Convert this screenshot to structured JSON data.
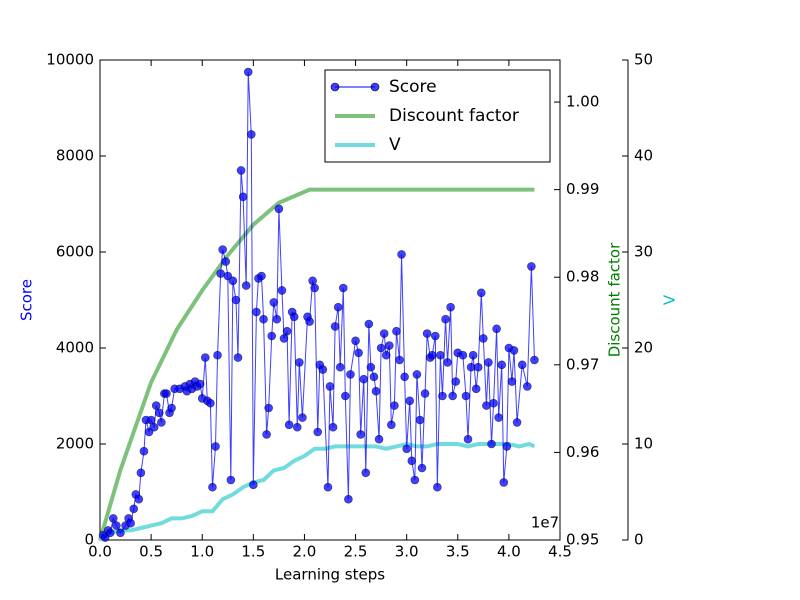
{
  "chart_data": {
    "type": "line",
    "xlabel": "Learning steps",
    "ylabel": "Score",
    "y2label": "Discount factor",
    "y3label": "V",
    "x_offset_label": "1e7",
    "xlim": [
      0,
      45000000.0
    ],
    "xticks": [
      {
        "value": 0,
        "label": "0.0"
      },
      {
        "value": 5000000.0,
        "label": "0.5"
      },
      {
        "value": 10000000.0,
        "label": "1.0"
      },
      {
        "value": 15000000.0,
        "label": "1.5"
      },
      {
        "value": 20000000.0,
        "label": "2.0"
      },
      {
        "value": 25000000.0,
        "label": "2.5"
      },
      {
        "value": 30000000.0,
        "label": "3.0"
      },
      {
        "value": 35000000.0,
        "label": "3.5"
      },
      {
        "value": 40000000.0,
        "label": "4.0"
      },
      {
        "value": 45000000.0,
        "label": "4.5"
      }
    ],
    "ylim": [
      0,
      10000
    ],
    "yticks": [
      0,
      2000,
      4000,
      6000,
      8000,
      10000
    ],
    "y2lim": [
      0.95,
      1.0048
    ],
    "y2ticks": [
      0.95,
      0.96,
      0.97,
      0.98,
      0.99,
      {
        "value": 1.0,
        "label": "1.00"
      }
    ],
    "y3lim": [
      0,
      50
    ],
    "y3ticks": [
      0,
      10,
      20,
      30,
      40,
      50
    ],
    "legend": "upper right",
    "series": [
      {
        "name": "Score",
        "color": "#0000ff",
        "marker": true,
        "x": [
          300000.0,
          500000.0,
          800000.0,
          1000000.0,
          1300000.0,
          1600000.0,
          2000000.0,
          2500000.0,
          2800000.0,
          3000000.0,
          3300000.0,
          3500000.0,
          3800000.0,
          4000000.0,
          4300000.0,
          4500000.0,
          4800000.0,
          5000000.0,
          5300000.0,
          5500000.0,
          5800000.0,
          6000000.0,
          6300000.0,
          6500000.0,
          6800000.0,
          7000000.0,
          7300000.0,
          7800000.0,
          8300000.0,
          8500000.0,
          8800000.0,
          9000000.0,
          9300000.0,
          9500000.0,
          9800000.0,
          10000000.0,
          10300000.0,
          10500000.0,
          10800000.0,
          11000000.0,
          11300000.0,
          11500000.0,
          11800000.0,
          12000000.0,
          12300000.0,
          12500000.0,
          12800000.0,
          13000000.0,
          13300000.0,
          13500000.0,
          13800000.0,
          14000000.0,
          14300000.0,
          14500000.0,
          14800000.0,
          15000000.0,
          15300000.0,
          15500000.0,
          15800000.0,
          16000000.0,
          16300000.0,
          16500000.0,
          16800000.0,
          17000000.0,
          17300000.0,
          17500000.0,
          17800000.0,
          18000000.0,
          18300000.0,
          18500000.0,
          18800000.0,
          19000000.0,
          19300000.0,
          19500000.0,
          19800000.0,
          20300000.0,
          20500000.0,
          20800000.0,
          21000000.0,
          21300000.0,
          21500000.0,
          21800000.0,
          22300000.0,
          22500000.0,
          22800000.0,
          23000000.0,
          23300000.0,
          23500000.0,
          23800000.0,
          24000000.0,
          24300000.0,
          24500000.0,
          25000000.0,
          25300000.0,
          25500000.0,
          25800000.0,
          26000000.0,
          26300000.0,
          26500000.0,
          26800000.0,
          27000000.0,
          27300000.0,
          27500000.0,
          27800000.0,
          28000000.0,
          28300000.0,
          28500000.0,
          28800000.0,
          29000000.0,
          29300000.0,
          29500000.0,
          29800000.0,
          30000000.0,
          30300000.0,
          30500000.0,
          30800000.0,
          31000000.0,
          31300000.0,
          31500000.0,
          31800000.0,
          32000000.0,
          32300000.0,
          32500000.0,
          32800000.0,
          33000000.0,
          33300000.0,
          33500000.0,
          33800000.0,
          34000000.0,
          34300000.0,
          34500000.0,
          34800000.0,
          35000000.0,
          35500000.0,
          35800000.0,
          36000000.0,
          36300000.0,
          36500000.0,
          36800000.0,
          37000000.0,
          37300000.0,
          37500000.0,
          37800000.0,
          38000000.0,
          38300000.0,
          38500000.0,
          38800000.0,
          39000000.0,
          39300000.0,
          39500000.0,
          39800000.0,
          40000000.0,
          40300000.0,
          40500000.0,
          40800000.0,
          41300000.0,
          41800000.0,
          42200000.0,
          42500000.0
        ],
        "values": [
          100,
          50,
          200,
          150,
          450,
          300,
          150,
          300,
          450,
          350,
          650,
          950,
          850,
          1400,
          1850,
          2500,
          2250,
          2500,
          2350,
          2800,
          2650,
          2450,
          3050,
          3050,
          2650,
          2750,
          3150,
          3150,
          3200,
          3100,
          3250,
          3150,
          3300,
          3200,
          3250,
          2950,
          3800,
          2900,
          2850,
          1100,
          1950,
          3850,
          5550,
          6050,
          5800,
          5500,
          1250,
          5400,
          5000,
          3800,
          7700,
          7150,
          5300,
          9750,
          8450,
          1150,
          4750,
          5450,
          5500,
          4600,
          2200,
          2750,
          4250,
          4950,
          4600,
          6900,
          5200,
          4200,
          4350,
          2400,
          4750,
          4650,
          2350,
          3700,
          2550,
          4650,
          4550,
          5400,
          5250,
          2250,
          3650,
          3550,
          1100,
          3200,
          2350,
          4450,
          4850,
          3600,
          5250,
          3000,
          850,
          3450,
          4150,
          3900,
          2200,
          3350,
          1400,
          4500,
          3600,
          3400,
          3100,
          2100,
          4000,
          4300,
          3850,
          4050,
          2400,
          2800,
          4350,
          3750,
          5950,
          3400,
          1900,
          2900,
          1650,
          1250,
          3450,
          2500,
          1500,
          3050,
          4300,
          3800,
          3850,
          4250,
          1100,
          3850,
          3000,
          4600,
          3700,
          4850,
          3000,
          3300,
          3900,
          3850,
          3000,
          2100,
          3600,
          3850,
          3150,
          3600,
          5150,
          4200,
          2800,
          3700,
          2000,
          2850,
          4400,
          2550,
          3650,
          1200,
          1950,
          4000,
          3300,
          3950,
          2450,
          3650,
          3200,
          5700,
          3750
        ]
      },
      {
        "name": "Discount factor",
        "color": "#7dc17d",
        "axis": "y2",
        "x": [
          0,
          1000000.0,
          2000000.0,
          3500000.0,
          5000000.0,
          7500000.0,
          10000000.0,
          12500000.0,
          15000000.0,
          17500000.0,
          20500000.0,
          42500000.0
        ],
        "values": [
          0.95,
          0.954,
          0.958,
          0.963,
          0.968,
          0.974,
          0.9785,
          0.9825,
          0.986,
          0.9885,
          0.99,
          0.99
        ]
      },
      {
        "name": "V",
        "color": "#72dcdc",
        "axis": "y3",
        "x": [
          0,
          1000000.0,
          2000000.0,
          3000000.0,
          4000000.0,
          5000000.0,
          6000000.0,
          7000000.0,
          8000000.0,
          9000000.0,
          10000000.0,
          11000000.0,
          12000000.0,
          13000000.0,
          14000000.0,
          15000000.0,
          16000000.0,
          17000000.0,
          18000000.0,
          19000000.0,
          20000000.0,
          21000000.0,
          22000000.0,
          23000000.0,
          24000000.0,
          25000000.0,
          26000000.0,
          27000000.0,
          28000000.0,
          29000000.0,
          30000000.0,
          31000000.0,
          32000000.0,
          33000000.0,
          34000000.0,
          35000000.0,
          36000000.0,
          37000000.0,
          38000000.0,
          39000000.0,
          40000000.0,
          41000000.0,
          42000000.0,
          42500000.0
        ],
        "values": [
          0,
          0.75,
          1,
          1,
          1.25,
          1.5,
          1.75,
          2.25,
          2.25,
          2.5,
          3,
          3,
          4.25,
          4.75,
          5.5,
          6,
          6.25,
          7.25,
          7.5,
          8.25,
          8.75,
          9.5,
          9.5,
          9.75,
          9.75,
          9.75,
          9.75,
          9.75,
          9.5,
          9.75,
          10,
          9.75,
          9.75,
          10,
          10,
          10,
          9.75,
          10,
          10,
          10,
          10,
          9.75,
          10,
          9.75
        ]
      }
    ]
  }
}
